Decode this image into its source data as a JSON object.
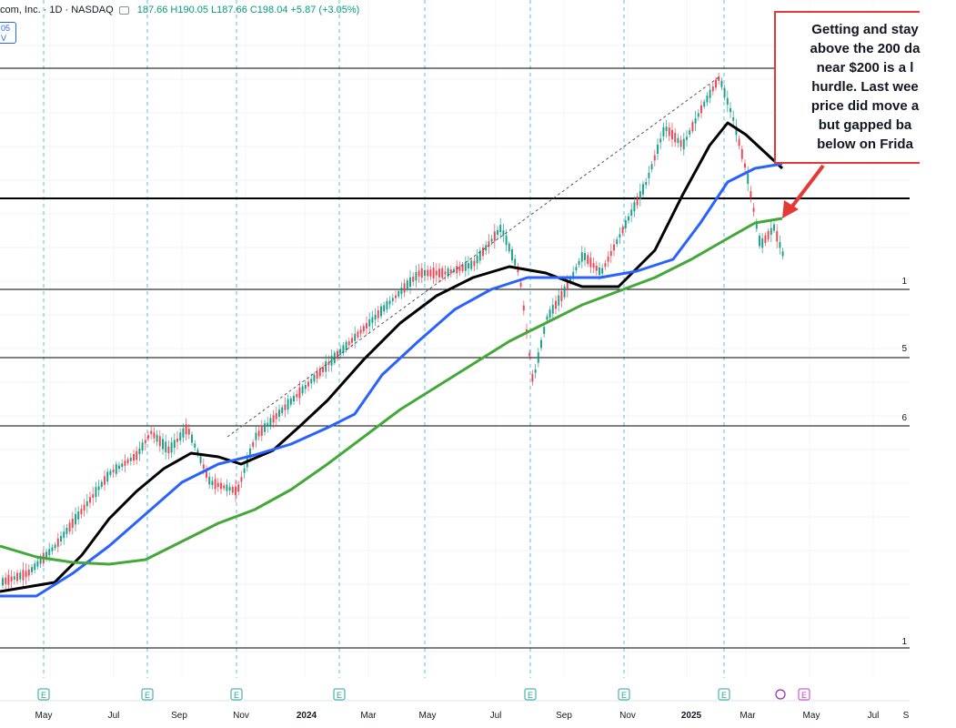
{
  "header": {
    "symbol": "com, Inc. · 1D · NASDAQ",
    "ohlc": "187.66 H190.05 L187.66 C198.04 +5.87 (+3.05%)",
    "badge_line1": "05",
    "badge_line2": "V"
  },
  "annotation": {
    "text": "Getting and stay\nabove the 200 da\nnear $200 is a l\nhurdle.  Last wee\nprice did move a\nbut gapped ba\nbelow on Frida"
  },
  "price_labels": [
    "1",
    "5",
    "6",
    "1"
  ],
  "event_markers": {
    "earnings": "E",
    "dividend": "E"
  },
  "colors": {
    "sma50": "#000000",
    "sma100": "#2962ff",
    "sma200": "#43a839",
    "up": "#089981",
    "down": "#f23645",
    "callout": "#e53935",
    "gridline": "#5bc0de",
    "arrow": "#e53935"
  },
  "chart_data": {
    "type": "line",
    "title": "",
    "x_tick_labels": [
      "May",
      "Jul",
      "Sep",
      "Nov",
      "2024",
      "Mar",
      "May",
      "Jul",
      "Sep",
      "Nov",
      "2025",
      "Mar",
      "May",
      "Jul",
      "S"
    ],
    "series": [
      {
        "name": "",
        "color": "#000000",
        "points": [
          [
            0,
            650
          ],
          [
            30,
            645
          ],
          [
            60,
            640
          ],
          [
            90,
            610
          ],
          [
            120,
            570
          ],
          [
            150,
            540
          ],
          [
            180,
            515
          ],
          [
            210,
            498
          ],
          [
            240,
            502
          ],
          [
            265,
            510
          ],
          [
            300,
            495
          ],
          [
            330,
            468
          ],
          [
            360,
            440
          ],
          [
            400,
            395
          ],
          [
            440,
            355
          ],
          [
            480,
            325
          ],
          [
            520,
            305
          ],
          [
            560,
            293
          ],
          [
            600,
            300
          ],
          [
            640,
            315
          ],
          [
            680,
            315
          ],
          [
            720,
            275
          ],
          [
            750,
            215
          ],
          [
            780,
            160
          ],
          [
            800,
            135
          ],
          [
            820,
            148
          ],
          [
            860,
            185
          ]
        ]
      },
      {
        "name": "",
        "color": "#2962ff",
        "points": [
          [
            0,
            655
          ],
          [
            40,
            655
          ],
          [
            80,
            630
          ],
          [
            120,
            600
          ],
          [
            160,
            565
          ],
          [
            200,
            530
          ],
          [
            240,
            510
          ],
          [
            280,
            500
          ],
          [
            320,
            488
          ],
          [
            360,
            470
          ],
          [
            390,
            455
          ],
          [
            420,
            412
          ],
          [
            460,
            375
          ],
          [
            500,
            340
          ],
          [
            540,
            318
          ],
          [
            580,
            305
          ],
          [
            620,
            305
          ],
          [
            660,
            305
          ],
          [
            700,
            298
          ],
          [
            740,
            285
          ],
          [
            770,
            245
          ],
          [
            800,
            200
          ],
          [
            830,
            185
          ],
          [
            860,
            180
          ]
        ]
      },
      {
        "name": "",
        "color": "#43a839",
        "points": [
          [
            0,
            600
          ],
          [
            40,
            612
          ],
          [
            80,
            618
          ],
          [
            120,
            620
          ],
          [
            160,
            615
          ],
          [
            200,
            595
          ],
          [
            240,
            575
          ],
          [
            280,
            560
          ],
          [
            320,
            538
          ],
          [
            360,
            510
          ],
          [
            400,
            480
          ],
          [
            440,
            450
          ],
          [
            480,
            425
          ],
          [
            520,
            400
          ],
          [
            560,
            375
          ],
          [
            600,
            355
          ],
          [
            640,
            335
          ],
          [
            680,
            320
          ],
          [
            720,
            305
          ],
          [
            760,
            285
          ],
          [
            800,
            262
          ],
          [
            830,
            245
          ],
          [
            860,
            240
          ]
        ]
      }
    ],
    "horizontal_levels_y": [
      75,
      218,
      318,
      393,
      468,
      712
    ],
    "trendline": [
      [
        250,
        480
      ],
      [
        790,
        85
      ]
    ]
  }
}
